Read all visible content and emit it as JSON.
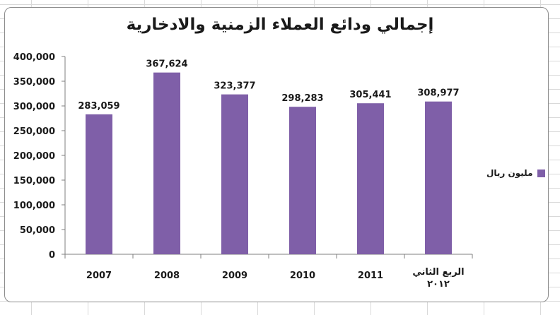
{
  "chart_data": {
    "type": "bar",
    "title": "إجمالي ودائع العملاء الزمنية والادخارية",
    "xlabel": "",
    "ylabel": "",
    "categories": [
      "2007",
      "2008",
      "2009",
      "2010",
      "2011",
      "الربع الثاني ٢٠١٢"
    ],
    "category_lines": [
      [
        "2007"
      ],
      [
        "2008"
      ],
      [
        "2009"
      ],
      [
        "2010"
      ],
      [
        "2011"
      ],
      [
        "الربع الثاني",
        "٢٠١٢"
      ]
    ],
    "series": [
      {
        "name": "مليون ريال",
        "values": [
          283059,
          367624,
          323377,
          298283,
          305441,
          308977
        ],
        "value_labels": [
          "283,059",
          "367,624",
          "323,377",
          "298,283",
          "305,441",
          "308,977"
        ]
      }
    ],
    "ylim": [
      0,
      400000
    ],
    "ytick_values": [
      0,
      50000,
      100000,
      150000,
      200000,
      250000,
      300000,
      350000,
      400000
    ],
    "ytick_labels": [
      "0",
      "50,000",
      "100,000",
      "150,000",
      "200,000",
      "250,000",
      "300,000",
      "350,000",
      "400,000"
    ],
    "grid": false,
    "legend_position": "right",
    "bar_color": "#7f5fa8",
    "axis_color": "#7f7f7f",
    "text_color": "#1a1a1a"
  }
}
